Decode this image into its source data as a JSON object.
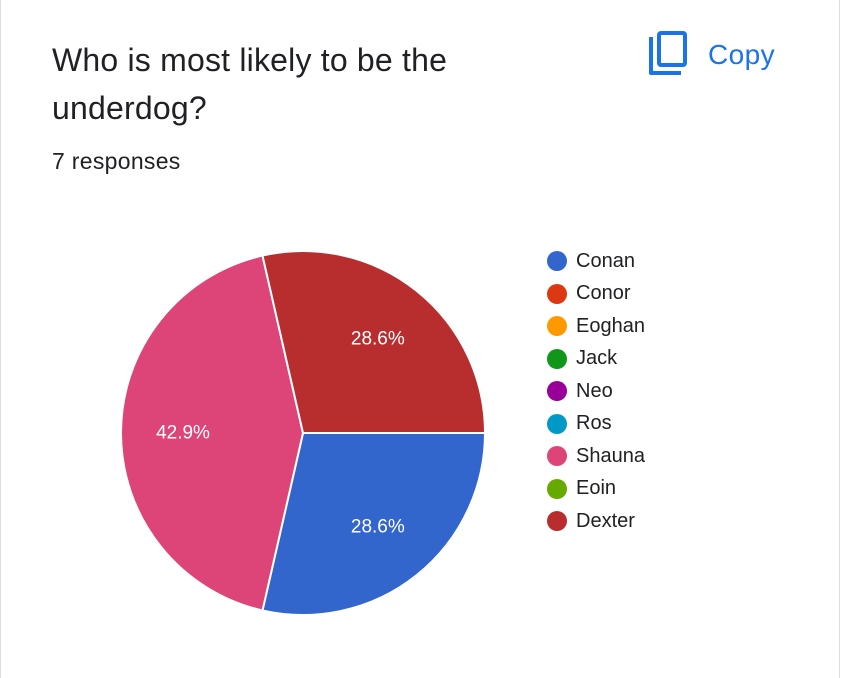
{
  "question": {
    "title": "Who is most likely to be the underdog?",
    "responses": "7 responses"
  },
  "copy_button": {
    "label": "Copy",
    "icon": "copy-icon",
    "color": "#1a73e8"
  },
  "chart_data": {
    "type": "pie",
    "title": "",
    "categories": [
      "Conan",
      "Conor",
      "Eoghan",
      "Jack",
      "Neo",
      "Ros",
      "Shauna",
      "Eoin",
      "Dexter"
    ],
    "colors": [
      "#3366cc",
      "#dc3912",
      "#ff9900",
      "#109618",
      "#990099",
      "#0099c6",
      "#dd4477",
      "#66aa00",
      "#b82e2e"
    ],
    "values": [
      28.6,
      0,
      0,
      0,
      0,
      0,
      42.9,
      0,
      28.6
    ],
    "data_labels": [
      "28.6%",
      "",
      "",
      "",
      "",
      "",
      "42.9%",
      "",
      "28.6%"
    ],
    "legend_position": "right",
    "start_angle": "3 o'clock",
    "direction": "clockwise"
  }
}
